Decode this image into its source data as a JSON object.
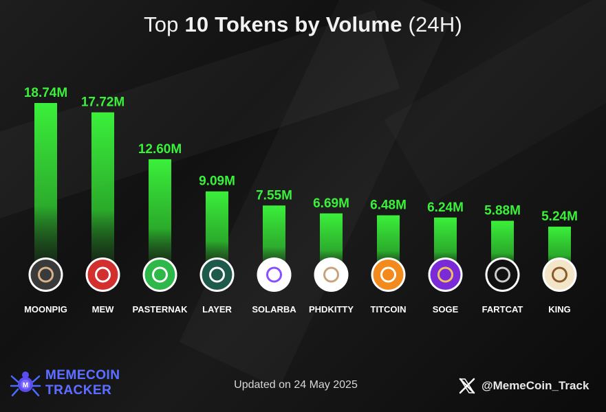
{
  "title": {
    "light": "Top",
    "bold": "10 Tokens by Volume",
    "suffix": "(24H)"
  },
  "chart_data": {
    "type": "bar",
    "categories": [
      "MOONPIG",
      "MEW",
      "PASTERNAK",
      "LAYER",
      "SOLARBA",
      "PHDKITTY",
      "TITCOIN",
      "SOGE",
      "FARTCAT",
      "KING"
    ],
    "values": [
      18.74,
      17.72,
      12.6,
      9.09,
      7.55,
      6.69,
      6.48,
      6.24,
      5.88,
      5.24
    ],
    "value_labels": [
      "18.74M",
      "17.72M",
      "12.60M",
      "9.09M",
      "7.55M",
      "6.69M",
      "6.48M",
      "6.24M",
      "5.88M",
      "5.24M"
    ],
    "unit": "M",
    "bar_color": "#3bf03b",
    "label_color": "#3bf03b",
    "token_icons": [
      {
        "name": "moonpig-icon",
        "bg": "#3a3a3a",
        "fg": "#d9b38c"
      },
      {
        "name": "mew-icon",
        "bg": "#d32f2f",
        "fg": "#ffffff"
      },
      {
        "name": "pasternak-icon",
        "bg": "#2fb84a",
        "fg": "#ffffff"
      },
      {
        "name": "layer-icon",
        "bg": "#1e5a4a",
        "fg": "#ffffff"
      },
      {
        "name": "solarba-icon",
        "bg": "#ffffff",
        "fg": "#8a4dff"
      },
      {
        "name": "phdkitty-icon",
        "bg": "#ffffff",
        "fg": "#c9a27a"
      },
      {
        "name": "titcoin-icon",
        "bg": "#f28a1e",
        "fg": "#ffffff"
      },
      {
        "name": "soge-icon",
        "bg": "#7a2ad6",
        "fg": "#f0c060"
      },
      {
        "name": "fartcat-icon",
        "bg": "#111111",
        "fg": "#cccccc"
      },
      {
        "name": "king-icon",
        "bg": "#f3e6c8",
        "fg": "#8a5a2a"
      }
    ]
  },
  "footer": {
    "brand_line1": "MEMECOIN",
    "brand_line2": "TRACKER",
    "updated": "Updated on 24 May 2025",
    "handle": "@MemeCoin_Track"
  }
}
